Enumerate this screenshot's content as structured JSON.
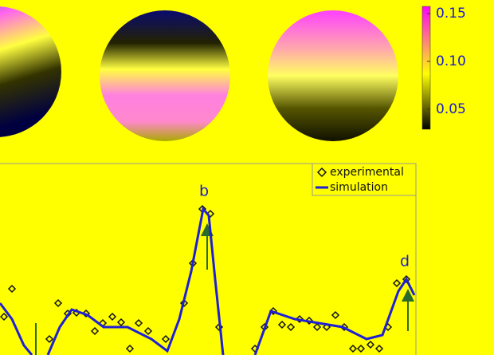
{
  "chart_data": [
    {
      "type": "colorbar",
      "clim": [
        0.029,
        0.1575
      ],
      "ticks": [
        0.05,
        {
          "value": 0.1,
          "label": "0.10"
        },
        0.15
      ]
    },
    {
      "type": "line",
      "xlim": [
        0,
        52
      ],
      "ylim": [
        0,
        2.4
      ],
      "annotations": [
        {
          "text": "b",
          "x": 25.6
        },
        {
          "text": "d",
          "x": 50.8
        }
      ],
      "legend": "upper right",
      "series": [
        {
          "name": "experimental",
          "color": "#111111",
          "marker": "diamond",
          "x": [
            0.5,
            1.5,
            6.2,
            7.3,
            8.5,
            9.6,
            10.8,
            11.9,
            12.9,
            14.1,
            15.2,
            16.3,
            17.4,
            18.6,
            20.8,
            23.1,
            24.2,
            25.4,
            26.4,
            27.5,
            32,
            33.2,
            34.3,
            35.4,
            36.5,
            37.6,
            38.8,
            39.8,
            41,
            42.1,
            43.2,
            44.3,
            45.3,
            46.5,
            47.6,
            48.7,
            49.8,
            51
          ],
          "values": [
            0.48,
            0.83,
            0.2,
            0.65,
            0.52,
            0.53,
            0.52,
            0.3,
            0.4,
            0.48,
            0.41,
            0.08,
            0.4,
            0.3,
            0.2,
            0.65,
            1.15,
            1.83,
            1.77,
            0.35,
            0.08,
            0.35,
            0.55,
            0.38,
            0.35,
            0.45,
            0.43,
            0.35,
            0.35,
            0.5,
            0.35,
            0.08,
            0.08,
            0.13,
            0.08,
            0.35,
            0.9,
            0.95
          ]
        },
        {
          "name": "simulation",
          "color": "#1f1fd6",
          "x": [
            0,
            1.5,
            3,
            4,
            null,
            6,
            7.5,
            9,
            11,
            13,
            16,
            19,
            21,
            22.5,
            24,
            25.5,
            26.2,
            27,
            28,
            null,
            32,
            34,
            37,
            40,
            43,
            46,
            48,
            50,
            51,
            52
          ],
          "values": [
            0.65,
            0.45,
            0.12,
            0,
            null,
            0,
            0.35,
            0.57,
            0.5,
            0.35,
            0.35,
            0.2,
            0.05,
            0.45,
            1.05,
            1.83,
            1.75,
            0.95,
            0,
            null,
            0,
            0.55,
            0.45,
            0.4,
            0.35,
            0.2,
            0.25,
            0.8,
            0.95,
            0.75
          ]
        }
      ]
    }
  ]
}
